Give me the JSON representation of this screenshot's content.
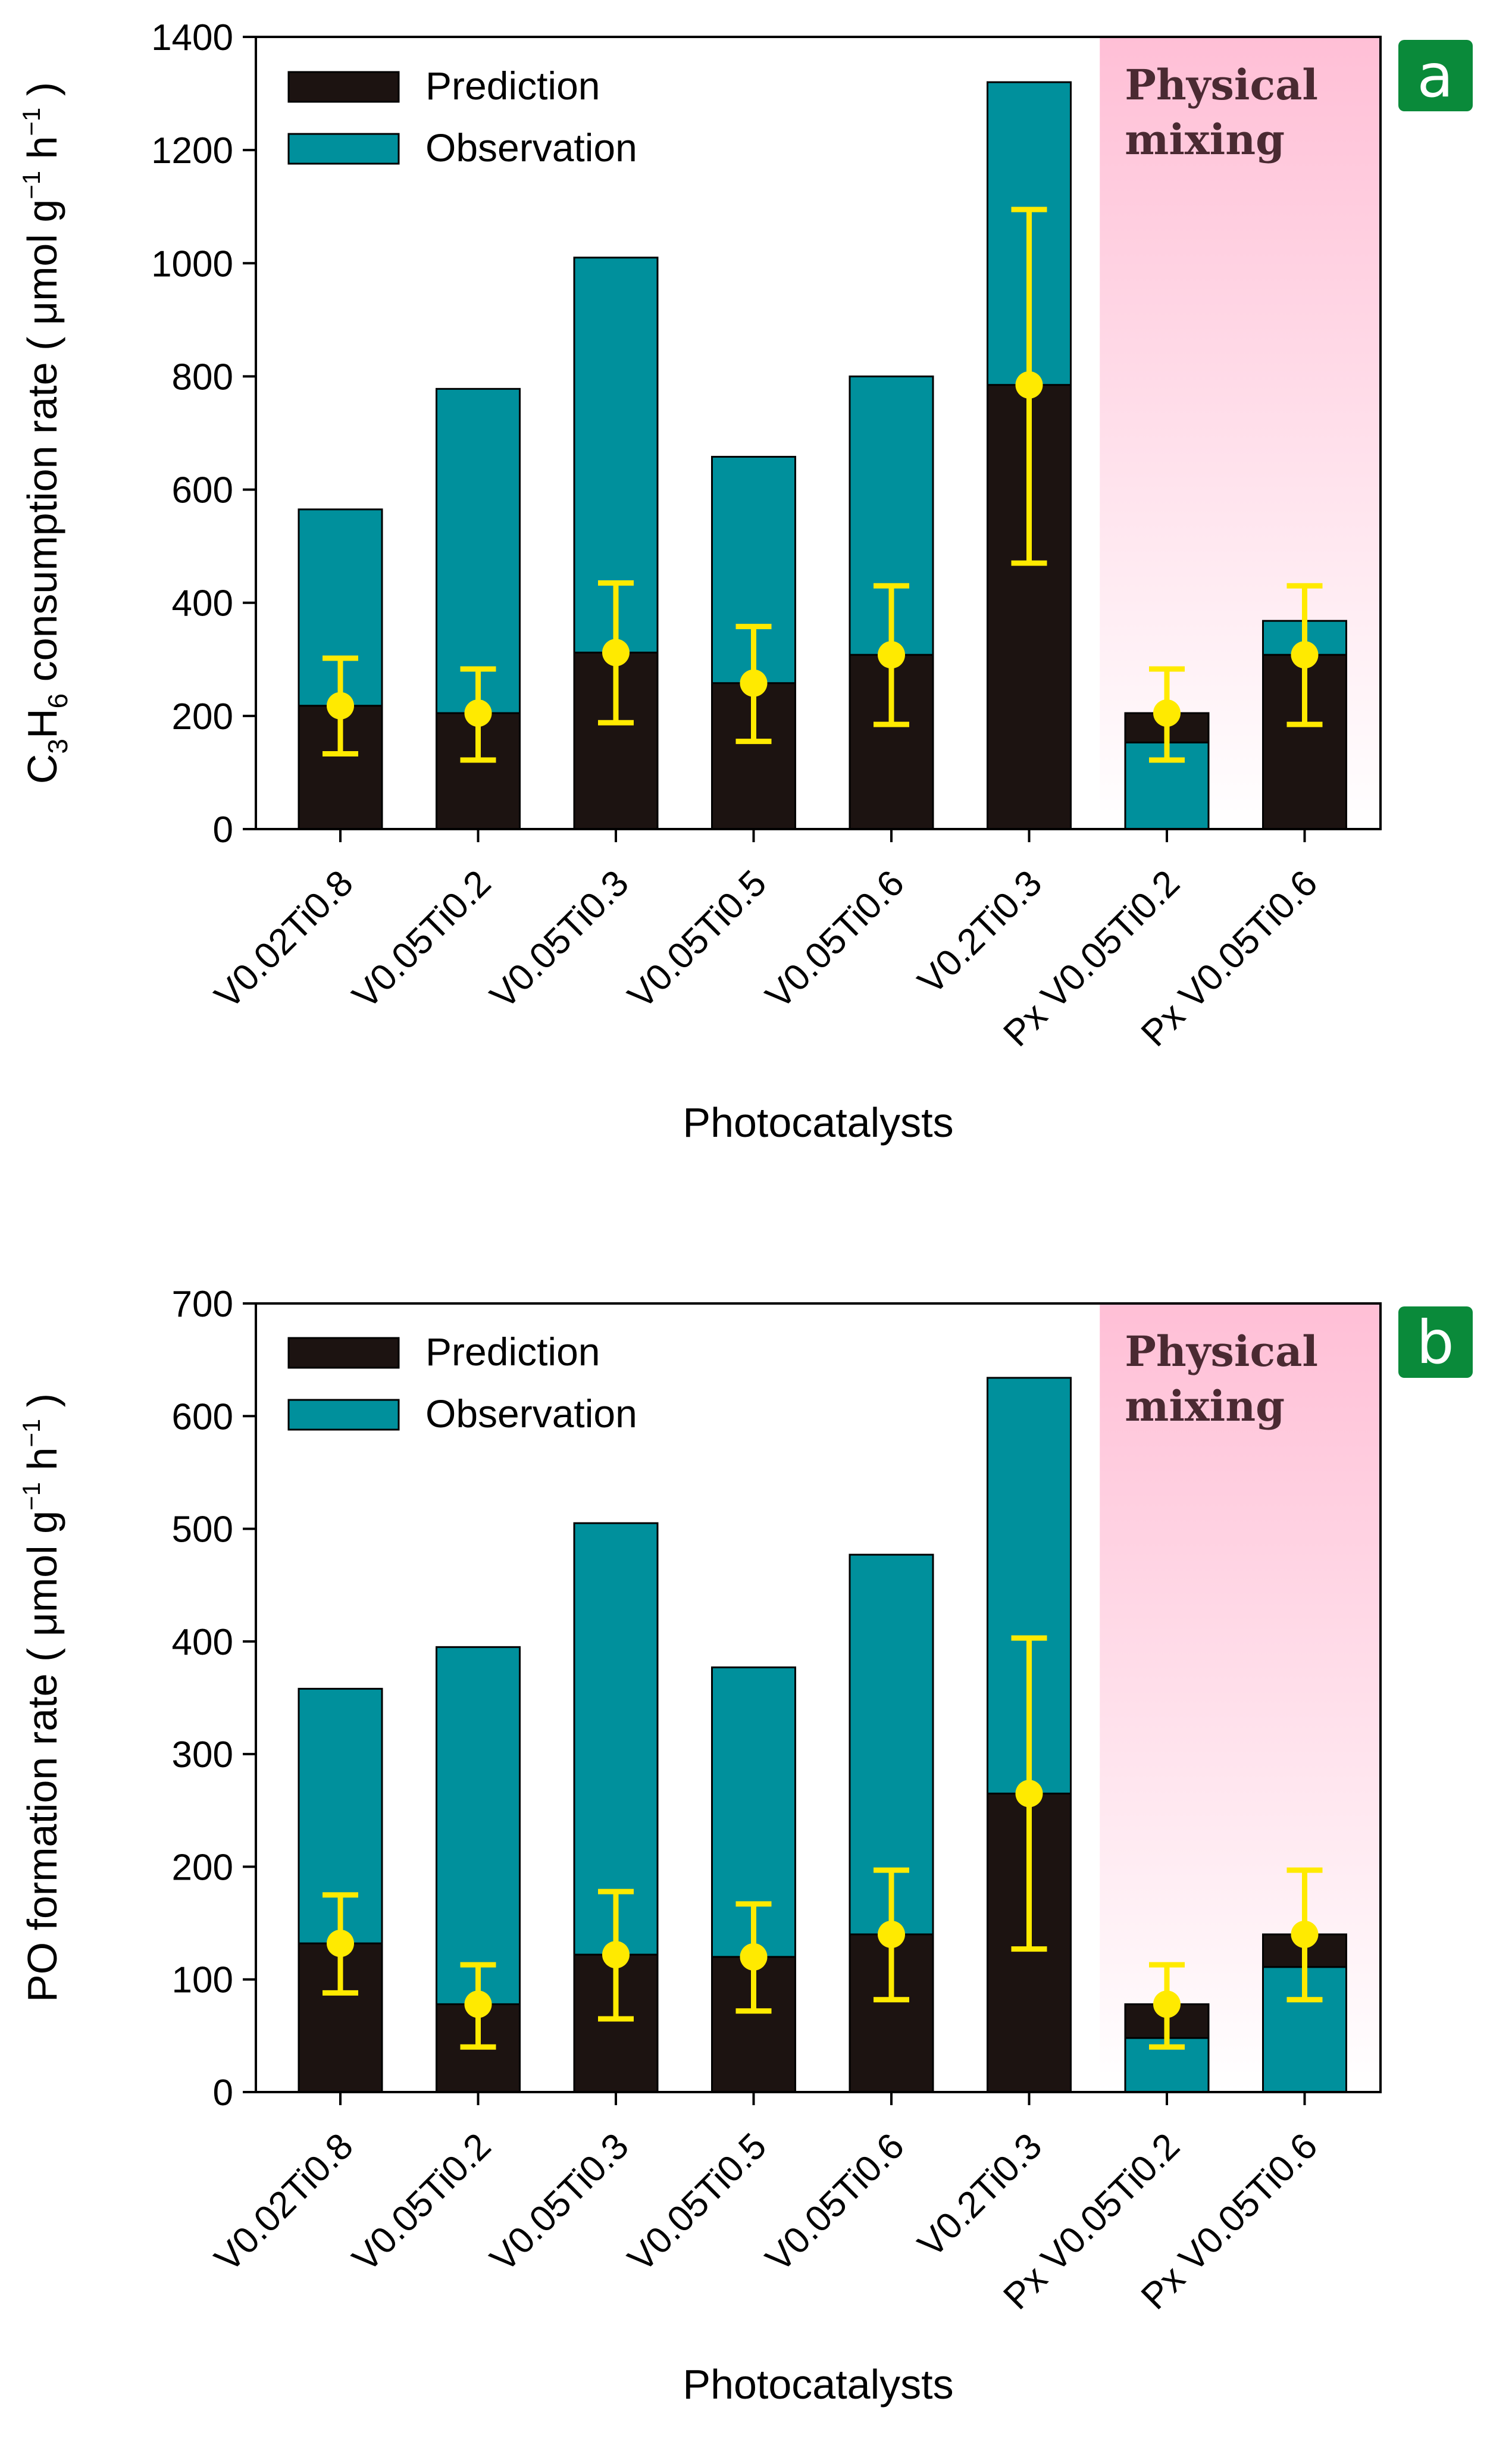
{
  "colors": {
    "prediction": "#1c1311",
    "observation": "#00909c",
    "errorbar": "#ffea00",
    "shade_top": "#ffbfd6",
    "shade_bottom": "#ffffff",
    "badge": "#0a8a3a",
    "axis": "#000000"
  },
  "chart_data": [
    {
      "type": "bar",
      "panel": "a",
      "xlabel": "Photocatalysts",
      "ylabel": "C3H6 consumption rate ( μmol g-1 h-1 )",
      "ylabel_parts": {
        "pre": "C",
        "sub1": "3",
        "mid": "H",
        "sub2": "6",
        "post": " consumption rate ( μmol g",
        "sup1": "−1",
        "sp": " h",
        "sup2": "−1",
        "end": " )"
      },
      "ylim": [
        0,
        1400
      ],
      "yticks": [
        0,
        200,
        400,
        600,
        800,
        1000,
        1200,
        1400
      ],
      "categories": [
        "V0.02Ti0.8",
        "V0.05Ti0.2",
        "V0.05Ti0.3",
        "V0.05Ti0.5",
        "V0.05Ti0.6",
        "V0.2Ti0.3",
        "Px V0.05Ti0.2",
        "Px V0.05Ti0.6"
      ],
      "series": [
        {
          "name": "Prediction",
          "values": [
            218,
            205,
            312,
            258,
            308,
            785,
            205,
            308
          ]
        },
        {
          "name": "Observation",
          "values": [
            565,
            778,
            1010,
            658,
            800,
            1320,
            153,
            368
          ]
        }
      ],
      "prediction_error": {
        "low": [
          133,
          122,
          188,
          155,
          185,
          470,
          122,
          185
        ],
        "high": [
          302,
          283,
          435,
          358,
          430,
          1095,
          283,
          430
        ]
      },
      "legend_position": "top-left",
      "annotation": "Physical mixing",
      "annotation_lines": [
        "Physical",
        "mixing"
      ],
      "shaded_categories": [
        6,
        7
      ],
      "panel_label": "a"
    },
    {
      "type": "bar",
      "panel": "b",
      "xlabel": "Photocatalysts",
      "ylabel": "PO formation rate ( μmol g-1 h-1 )",
      "ylabel_parts": {
        "pre": "PO formation rate ( μmol g",
        "sup1": "−1",
        "sp": " h",
        "sup2": "−1",
        "end": " )"
      },
      "ylim": [
        0,
        700
      ],
      "yticks": [
        0,
        100,
        200,
        300,
        400,
        500,
        600,
        700
      ],
      "categories": [
        "V0.02Ti0.8",
        "V0.05Ti0.2",
        "V0.05Ti0.3",
        "V0.05Ti0.5",
        "V0.05Ti0.6",
        "V0.2Ti0.3",
        "Px V0.05Ti0.2",
        "Px V0.05Ti0.6"
      ],
      "series": [
        {
          "name": "Prediction",
          "values": [
            132,
            78,
            122,
            120,
            140,
            265,
            78,
            140
          ]
        },
        {
          "name": "Observation",
          "values": [
            358,
            395,
            505,
            377,
            477,
            634,
            48,
            111
          ]
        }
      ],
      "prediction_error": {
        "low": [
          88,
          40,
          65,
          72,
          82,
          127,
          40,
          82
        ],
        "high": [
          175,
          113,
          178,
          167,
          197,
          403,
          113,
          197
        ]
      },
      "legend_position": "top-left",
      "annotation": "Physical mixing",
      "annotation_lines": [
        "Physical",
        "mixing"
      ],
      "shaded_categories": [
        6,
        7
      ],
      "panel_label": "b"
    }
  ]
}
